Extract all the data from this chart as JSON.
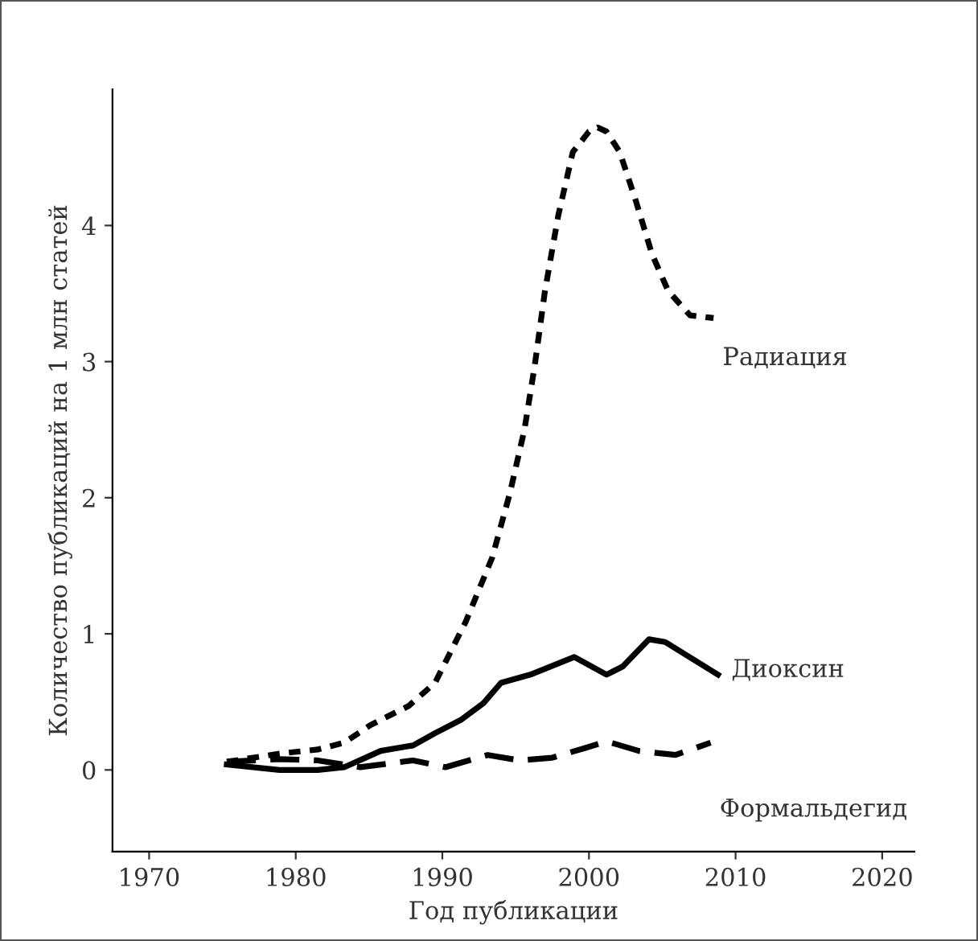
{
  "chart_data": {
    "type": "line",
    "xlabel": "Год публикации",
    "ylabel": "Количество публикаций на 1 млн статей",
    "xlim": [
      1967.5,
      2022.2
    ],
    "xticks": [
      1970,
      1980,
      1990,
      2000,
      2010,
      2020
    ],
    "ylim": [
      -0.6,
      5.0
    ],
    "yticks": [
      0,
      1,
      2,
      3,
      4
    ],
    "grid": false,
    "legend": false,
    "series": [
      {
        "name": "Радиация",
        "color": "#000000",
        "line_style": "dotted",
        "x": [
          1975.3,
          1978.9,
          1981.5,
          1983.3,
          1985.1,
          1987.7,
          1989.5,
          1991.6,
          1993.4,
          1994.6,
          1995.6,
          1996.3,
          1997.0,
          1997.9,
          1998.9,
          2000.0,
          2000.6,
          2001.2,
          2002.1,
          2003.2,
          2004.3,
          2005.4,
          2006.9,
          2008.5
        ],
        "values": [
          0.06,
          0.12,
          0.15,
          0.2,
          0.33,
          0.47,
          0.64,
          1.09,
          1.56,
          2.03,
          2.5,
          2.97,
          3.52,
          4.07,
          4.54,
          4.69,
          4.72,
          4.69,
          4.54,
          4.18,
          3.79,
          3.52,
          3.34,
          3.32
        ]
      },
      {
        "name": "Диоксин",
        "color": "#000000",
        "line_style": "solid",
        "x": [
          1975.3,
          1978.9,
          1981.5,
          1983.3,
          1985.8,
          1988.0,
          1989.5,
          1991.3,
          1992.8,
          1994.0,
          1996.0,
          1999.0,
          2001.2,
          2002.3,
          2004.1,
          2005.2,
          2008.8
        ],
        "values": [
          0.04,
          0.0,
          0.0,
          0.02,
          0.14,
          0.18,
          0.27,
          0.37,
          0.49,
          0.64,
          0.7,
          0.83,
          0.7,
          0.76,
          0.96,
          0.94,
          0.7
        ]
      },
      {
        "name": "Формальдегид",
        "color": "#000000",
        "line_style": "dashed",
        "x": [
          1975.3,
          1978.9,
          1981.5,
          1984.4,
          1988.0,
          1990.2,
          1993.1,
          1995.3,
          1997.5,
          1999.7,
          2001.2,
          2003.4,
          2005.9,
          2008.3
        ],
        "values": [
          0.06,
          0.08,
          0.07,
          0.02,
          0.07,
          0.02,
          0.11,
          0.07,
          0.09,
          0.16,
          0.21,
          0.14,
          0.11,
          0.2
        ]
      }
    ]
  }
}
